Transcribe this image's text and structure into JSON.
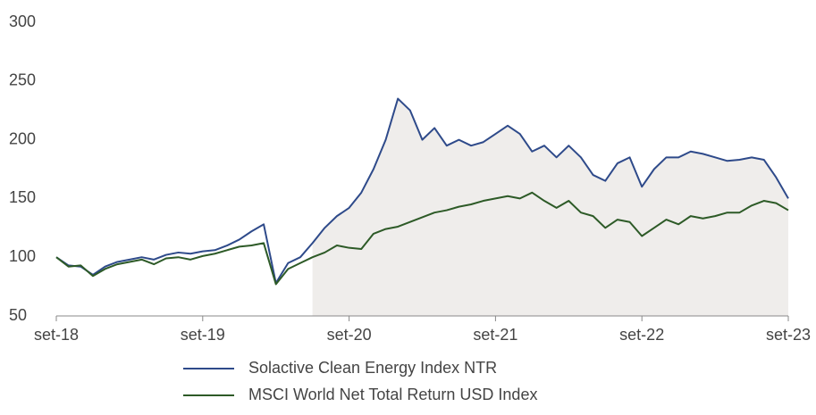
{
  "chart_data": {
    "type": "line",
    "x": [
      "2018-09",
      "2018-10",
      "2018-11",
      "2018-12",
      "2019-01",
      "2019-02",
      "2019-03",
      "2019-04",
      "2019-05",
      "2019-06",
      "2019-07",
      "2019-08",
      "2019-09",
      "2019-10",
      "2019-11",
      "2019-12",
      "2020-01",
      "2020-02",
      "2020-03",
      "2020-04",
      "2020-05",
      "2020-06",
      "2020-07",
      "2020-08",
      "2020-09",
      "2020-10",
      "2020-11",
      "2020-12",
      "2021-01",
      "2021-02",
      "2021-03",
      "2021-04",
      "2021-05",
      "2021-06",
      "2021-07",
      "2021-08",
      "2021-09",
      "2021-10",
      "2021-11",
      "2021-12",
      "2022-01",
      "2022-02",
      "2022-03",
      "2022-04",
      "2022-05",
      "2022-06",
      "2022-07",
      "2022-08",
      "2022-09",
      "2022-10",
      "2022-11",
      "2022-12",
      "2023-01",
      "2023-02",
      "2023-03",
      "2023-04",
      "2023-05",
      "2023-06",
      "2023-07",
      "2023-08",
      "2023-09"
    ],
    "series": [
      {
        "name": "Solactive Clean Energy Index NTR",
        "color": "#2e4a8a",
        "values": [
          100,
          93,
          92,
          85,
          92,
          96,
          98,
          100,
          98,
          102,
          104,
          103,
          105,
          106,
          110,
          115,
          122,
          128,
          78,
          95,
          100,
          112,
          125,
          135,
          142,
          155,
          175,
          200,
          235,
          225,
          200,
          210,
          195,
          200,
          195,
          198,
          205,
          212,
          205,
          190,
          195,
          185,
          195,
          185,
          170,
          165,
          180,
          185,
          160,
          175,
          185,
          185,
          190,
          188,
          185,
          182,
          183,
          185,
          183,
          168,
          150
        ]
      },
      {
        "name": "MSCI World Net Total Return USD Index",
        "color": "#2d5a27",
        "values": [
          100,
          92,
          93,
          84,
          90,
          94,
          96,
          98,
          94,
          99,
          100,
          98,
          101,
          103,
          106,
          109,
          110,
          112,
          77,
          90,
          95,
          100,
          104,
          110,
          108,
          107,
          120,
          124,
          126,
          130,
          134,
          138,
          140,
          143,
          145,
          148,
          150,
          152,
          150,
          155,
          148,
          142,
          148,
          138,
          135,
          125,
          132,
          130,
          118,
          125,
          132,
          128,
          135,
          133,
          135,
          138,
          138,
          144,
          148,
          146,
          140
        ]
      }
    ],
    "shaded_from": "2020-06",
    "shade_color": "#efedeb",
    "ylim": [
      50,
      300
    ],
    "yticks": [
      50,
      100,
      150,
      200,
      250,
      300
    ],
    "xlim": [
      "2018-09",
      "2023-09"
    ],
    "xticks": [
      {
        "value": "2018-09",
        "label": "set-18"
      },
      {
        "value": "2019-09",
        "label": "set-19"
      },
      {
        "value": "2020-09",
        "label": "set-20"
      },
      {
        "value": "2021-09",
        "label": "set-21"
      },
      {
        "value": "2022-09",
        "label": "set-22"
      },
      {
        "value": "2023-09",
        "label": "set-23"
      }
    ]
  }
}
